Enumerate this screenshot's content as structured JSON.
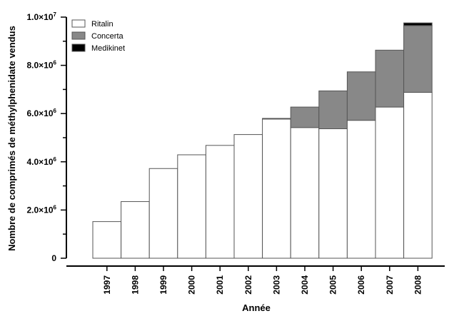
{
  "chart_data": {
    "type": "bar",
    "stacked": true,
    "xlabel": "Année",
    "ylabel": "Nombre de comprimés de méthylphenidate vendus",
    "categories": [
      "1997",
      "1998",
      "1999",
      "2000",
      "2001",
      "2002",
      "2003",
      "2004",
      "2005",
      "2006",
      "2007",
      "2008"
    ],
    "ylim": [
      0,
      10000000
    ],
    "yticks": [
      {
        "value": 0,
        "mantissa": "0",
        "exp": ""
      },
      {
        "value": 2000000,
        "mantissa": "2.0×10",
        "exp": "6"
      },
      {
        "value": 4000000,
        "mantissa": "4.0×10",
        "exp": "6"
      },
      {
        "value": 6000000,
        "mantissa": "6.0×10",
        "exp": "6"
      },
      {
        "value": 8000000,
        "mantissa": "8.0×10",
        "exp": "6"
      },
      {
        "value": 10000000,
        "mantissa": "1.0×10",
        "exp": "7"
      }
    ],
    "legend_position": "top-left",
    "series": [
      {
        "name": "Ritalin",
        "color": "#ffffff",
        "values": [
          1520000,
          2350000,
          3720000,
          4290000,
          4680000,
          5130000,
          5770000,
          5420000,
          5370000,
          5720000,
          6270000,
          6880000
        ]
      },
      {
        "name": "Concerta",
        "color": "#888888",
        "values": [
          0,
          0,
          0,
          0,
          0,
          0,
          30000,
          850000,
          1570000,
          2010000,
          2360000,
          2770000
        ]
      },
      {
        "name": "Medikinet",
        "color": "#000000",
        "values": [
          0,
          0,
          0,
          0,
          0,
          0,
          0,
          0,
          0,
          0,
          0,
          110000
        ]
      }
    ]
  }
}
